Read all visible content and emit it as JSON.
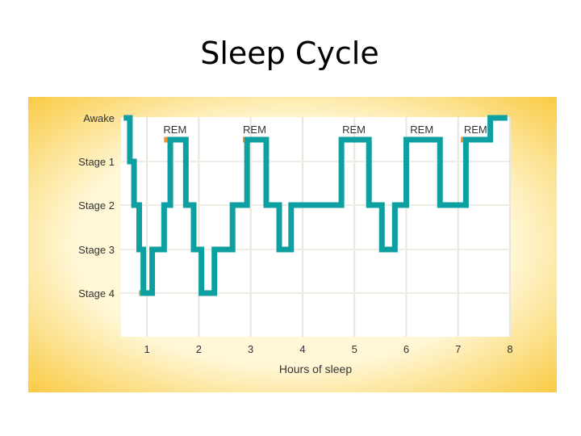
{
  "slide": {
    "title": "Sleep Cycle"
  },
  "colors": {
    "hypnogram": "#0e9fa0",
    "rem": "#f4922c",
    "deep_sleep": "#9aa63c",
    "plot_background": "#ffffff",
    "panel_center": "#fff7d6",
    "panel_edge": "#f8c42e",
    "axis_text": "#333333"
  },
  "chart_data": {
    "type": "line",
    "title": "",
    "xlabel": "Hours of sleep",
    "ylabel": "",
    "xlim": [
      0.5,
      8.0
    ],
    "x_ticks": [
      1,
      2,
      3,
      4,
      5,
      6,
      7,
      8
    ],
    "y_categories": [
      "Awake",
      "Stage 1",
      "Stage 2",
      "Stage 3",
      "Stage 4"
    ],
    "grid": true,
    "series": [
      {
        "step": true,
        "points": [
          {
            "x": 0.55,
            "stage": "Awake"
          },
          {
            "x": 0.67,
            "stage": "Stage 1"
          },
          {
            "x": 0.75,
            "stage": "Stage 2"
          },
          {
            "x": 0.85,
            "stage": "Stage 3"
          },
          {
            "x": 0.93,
            "stage": "Stage 4"
          },
          {
            "x": 1.1,
            "stage": "Stage 3"
          },
          {
            "x": 1.33,
            "stage": "Stage 2"
          },
          {
            "x": 1.45,
            "stage": "REM"
          },
          {
            "x": 1.75,
            "stage": "Stage 2"
          },
          {
            "x": 1.9,
            "stage": "Stage 3"
          },
          {
            "x": 2.05,
            "stage": "Stage 4"
          },
          {
            "x": 2.3,
            "stage": "Stage 3"
          },
          {
            "x": 2.65,
            "stage": "Stage 2"
          },
          {
            "x": 2.93,
            "stage": "REM"
          },
          {
            "x": 3.3,
            "stage": "Stage 2"
          },
          {
            "x": 3.55,
            "stage": "Stage 3"
          },
          {
            "x": 3.78,
            "stage": "Stage 2"
          },
          {
            "x": 4.75,
            "stage": "REM"
          },
          {
            "x": 5.28,
            "stage": "Stage 2"
          },
          {
            "x": 5.53,
            "stage": "Stage 3"
          },
          {
            "x": 5.78,
            "stage": "Stage 2"
          },
          {
            "x": 6.0,
            "stage": "REM"
          },
          {
            "x": 6.65,
            "stage": "Stage 2"
          },
          {
            "x": 7.15,
            "stage": "REM"
          },
          {
            "x": 7.62,
            "stage": "Awake"
          },
          {
            "x": 7.95,
            "stage": "Awake"
          }
        ]
      }
    ],
    "rem_periods": [
      {
        "label": "REM",
        "start": 1.33,
        "end": 1.75
      },
      {
        "label": "REM",
        "start": 2.85,
        "end": 3.3
      },
      {
        "label": "REM",
        "start": 4.7,
        "end": 5.28
      },
      {
        "label": "REM",
        "start": 5.95,
        "end": 6.65
      },
      {
        "label": "REM",
        "start": 7.05,
        "end": 7.62
      }
    ],
    "deep_periods": [
      {
        "start": 0.85,
        "end": 1.1
      },
      {
        "start": 2.05,
        "end": 2.3
      }
    ]
  }
}
